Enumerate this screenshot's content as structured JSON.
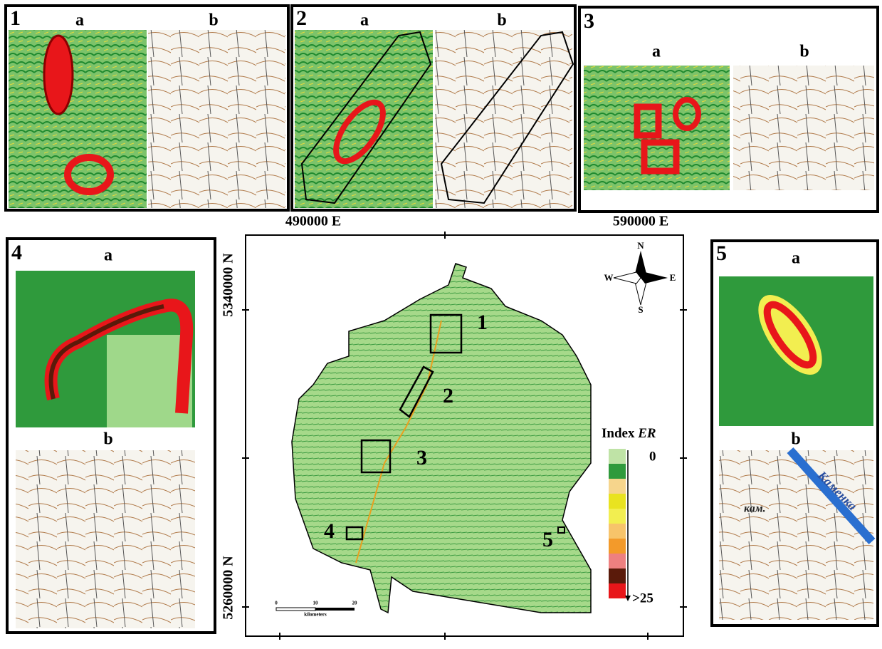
{
  "panels": [
    {
      "number": "1",
      "a": "a",
      "b": "b"
    },
    {
      "number": "2",
      "a": "a",
      "b": "b"
    },
    {
      "number": "3",
      "a": "a",
      "b": "b"
    },
    {
      "number": "4",
      "a": "a",
      "b": "b"
    },
    {
      "number": "5",
      "a": "a",
      "b": "b",
      "map_text": [
        "Каменка",
        "кам."
      ]
    }
  ],
  "main_map": {
    "x_coords": [
      "490000 E",
      "590000 E"
    ],
    "y_coords": [
      "5340000 N",
      "5260000 N"
    ],
    "compass": {
      "n": "N",
      "s": "S",
      "w": "W",
      "e": "E"
    },
    "legend": {
      "title": "Index",
      "title_italic": "ER",
      "min": "0",
      "max": ">25",
      "colors": [
        "#bfe3a6",
        "#2f9a3c",
        "#f6d58c",
        "#e9e320",
        "#f2ee50",
        "#f7c46a",
        "#f39a2a",
        "#ee8080",
        "#5a1a0a",
        "#e8161a"
      ]
    },
    "scale_bar": {
      "ticks": [
        "0",
        "10",
        "20"
      ],
      "unit": "kilometers"
    },
    "site_labels": [
      "1",
      "2",
      "3",
      "4",
      "5"
    ]
  }
}
